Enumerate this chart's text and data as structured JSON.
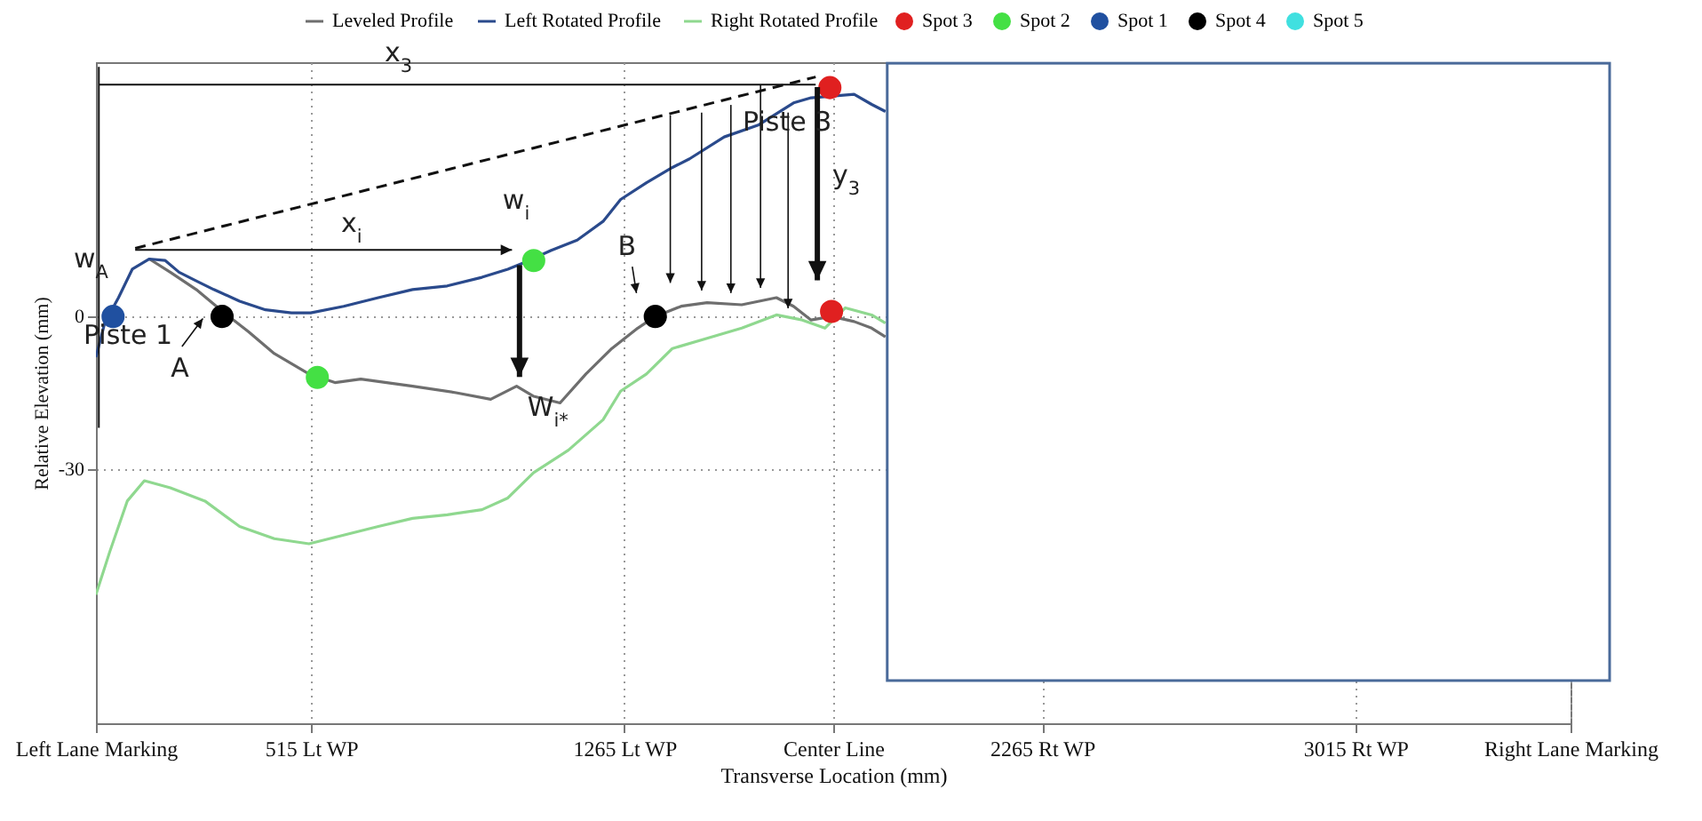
{
  "chart_data": {
    "type": "line",
    "xlabel": "Transverse Location (mm)",
    "ylabel": "Relative Elevation (mm)",
    "xlim": [
      0,
      3530
    ],
    "ylim": [
      -80,
      50
    ],
    "xticks": [
      {
        "value": 0,
        "label": "Left Lane Marking"
      },
      {
        "value": 515,
        "label": "515 Lt WP"
      },
      {
        "value": 1265,
        "label": "1265 Lt WP"
      },
      {
        "value": 1765,
        "label": "Center Line"
      },
      {
        "value": 2265,
        "label": "2265 Rt WP"
      },
      {
        "value": 3015,
        "label": "3015 Rt WP"
      },
      {
        "value": 3530,
        "label": "Right Lane Marking"
      }
    ],
    "yticks": [
      -30,
      0
    ],
    "grid": true,
    "legend": "top",
    "series": [
      {
        "name": "Leveled Profile",
        "color": "#6e6e6e",
        "x": [
          128,
          178,
          240,
          303,
          365,
          427,
          510,
          572,
          634,
          758,
          862,
          945,
          1007,
          1048,
          1111,
          1173,
          1235,
          1297,
          1339,
          1401,
          1463,
          1546,
          1629,
          1670,
          1712,
          1761,
          1815,
          1857,
          1890
        ],
        "values": [
          11.3,
          8.7,
          5.3,
          1,
          -3,
          -7.3,
          -11.3,
          -13,
          -12.3,
          -13.7,
          -15,
          -16.3,
          -13.7,
          -15.7,
          -17,
          -11.3,
          -6.3,
          -2.3,
          0,
          2,
          2.7,
          2.3,
          3.7,
          2,
          -0.7,
          0,
          -1,
          -2.3,
          -4
        ]
      },
      {
        "name": "Left Rotated Profile",
        "color": "#2a4a8c",
        "x": [
          0,
          21,
          54,
          87,
          128,
          166,
          199,
          240,
          282,
          344,
          406,
          468,
          514,
          593,
          676,
          758,
          841,
          924,
          986,
          1028,
          1090,
          1152,
          1214,
          1256,
          1318,
          1380,
          1421,
          1504,
          1587,
          1670,
          1712,
          1815,
          1857,
          1890
        ],
        "values": [
          -8,
          -1.3,
          3.7,
          9.3,
          11.3,
          11,
          8.7,
          7,
          5.3,
          3,
          1.3,
          0.7,
          0.7,
          2,
          3.7,
          5.3,
          6,
          7.7,
          9.3,
          10.7,
          13,
          15,
          18.7,
          23,
          26.3,
          29.3,
          31,
          35.3,
          37.7,
          42,
          43,
          43.7,
          41.7,
          40.3
        ]
      },
      {
        "name": "Right Rotated Profile",
        "color": "#8fd88f",
        "x": [
          0,
          33,
          75,
          116,
          178,
          261,
          344,
          427,
          510,
          593,
          676,
          758,
          841,
          924,
          986,
          1048,
          1131,
          1214,
          1256,
          1318,
          1380,
          1463,
          1546,
          1629,
          1691,
          1745,
          1794,
          1857,
          1890
        ],
        "values": [
          -54.7,
          -46.3,
          -36.3,
          -32.3,
          -33.7,
          -36.3,
          -41.3,
          -43.7,
          -44.7,
          -43,
          -41.3,
          -39.7,
          -39,
          -38,
          -35.7,
          -30.7,
          -26.3,
          -20.3,
          -14.7,
          -11.3,
          -6.3,
          -4.3,
          -2.3,
          0.3,
          -0.7,
          -2.3,
          1.7,
          0.3,
          -1.3
        ]
      },
      {
        "name": "Spot 3",
        "type": "scatter",
        "marker": "circle",
        "color": "#e02020",
        "x": [
          1757,
          1761
        ],
        "values": [
          45,
          1
        ]
      },
      {
        "name": "Spot 2",
        "type": "scatter",
        "marker": "circle",
        "color": "#44e044",
        "x": [
          1048,
          530
        ],
        "values": [
          11,
          -12
        ]
      },
      {
        "name": "Spot 1",
        "type": "scatter",
        "marker": "circle",
        "color": "#2050a0",
        "x": [
          41
        ],
        "values": [
          0
        ]
      },
      {
        "name": "Spot 4",
        "type": "scatter",
        "marker": "circle",
        "color": "#000000",
        "x": [
          302,
          1339
        ],
        "values": [
          0,
          0
        ]
      },
      {
        "name": "Spot 5",
        "type": "scatter",
        "marker": "circle",
        "color": "#40e0e0"
      }
    ],
    "annotations": [
      "x$_{3}$",
      "x$_{i}$",
      "w$_{i}$",
      {
        "text": "W$_{i*}$",
        "x": 1048,
        "y": -14
      },
      "w$_{A}$",
      "Piste 1",
      "A",
      "B",
      {
        "text": "Piste 3",
        "x": 1757,
        "y": 45
      },
      "y$_{3}$"
    ]
  }
}
